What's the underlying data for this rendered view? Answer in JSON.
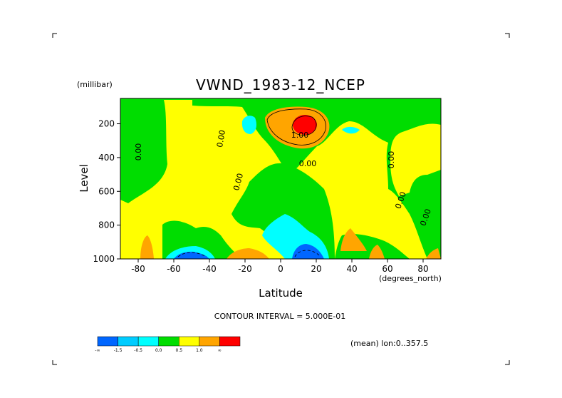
{
  "chart_data": {
    "type": "heatmap",
    "title": "VWND_1983-12_NCEP",
    "y_unit": "(millibar)",
    "ylabel": "Level",
    "xlabel": "Latitude",
    "x_unit": "(degrees_north)",
    "x_range": [
      -90,
      90
    ],
    "y_range": [
      50,
      1000
    ],
    "y_inverted": true,
    "x_ticks": [
      "-80",
      "-60",
      "-40",
      "-20",
      "0",
      "20",
      "40",
      "60",
      "80"
    ],
    "y_ticks": [
      "200",
      "400",
      "600",
      "800",
      "1000"
    ],
    "contour_interval_text": "CONTOUR INTERVAL = 5.000E-01",
    "mean_text": "(mean) lon:0..357.5",
    "contour_labels": [
      "0.00",
      "0.00",
      "0.00",
      "0.00",
      "0.00",
      "0.00",
      "0.00",
      "0.00",
      "1.00"
    ],
    "colorbar": {
      "colors": [
        "#0066ff",
        "#00ccff",
        "#00ffff",
        "#00dd00",
        "#ffff00",
        "#ffa500",
        "#ff0000"
      ],
      "labels": [
        "-∞",
        "-1.5",
        "-0.5",
        "0.0",
        "0.5",
        "1.0",
        "∞"
      ]
    }
  }
}
